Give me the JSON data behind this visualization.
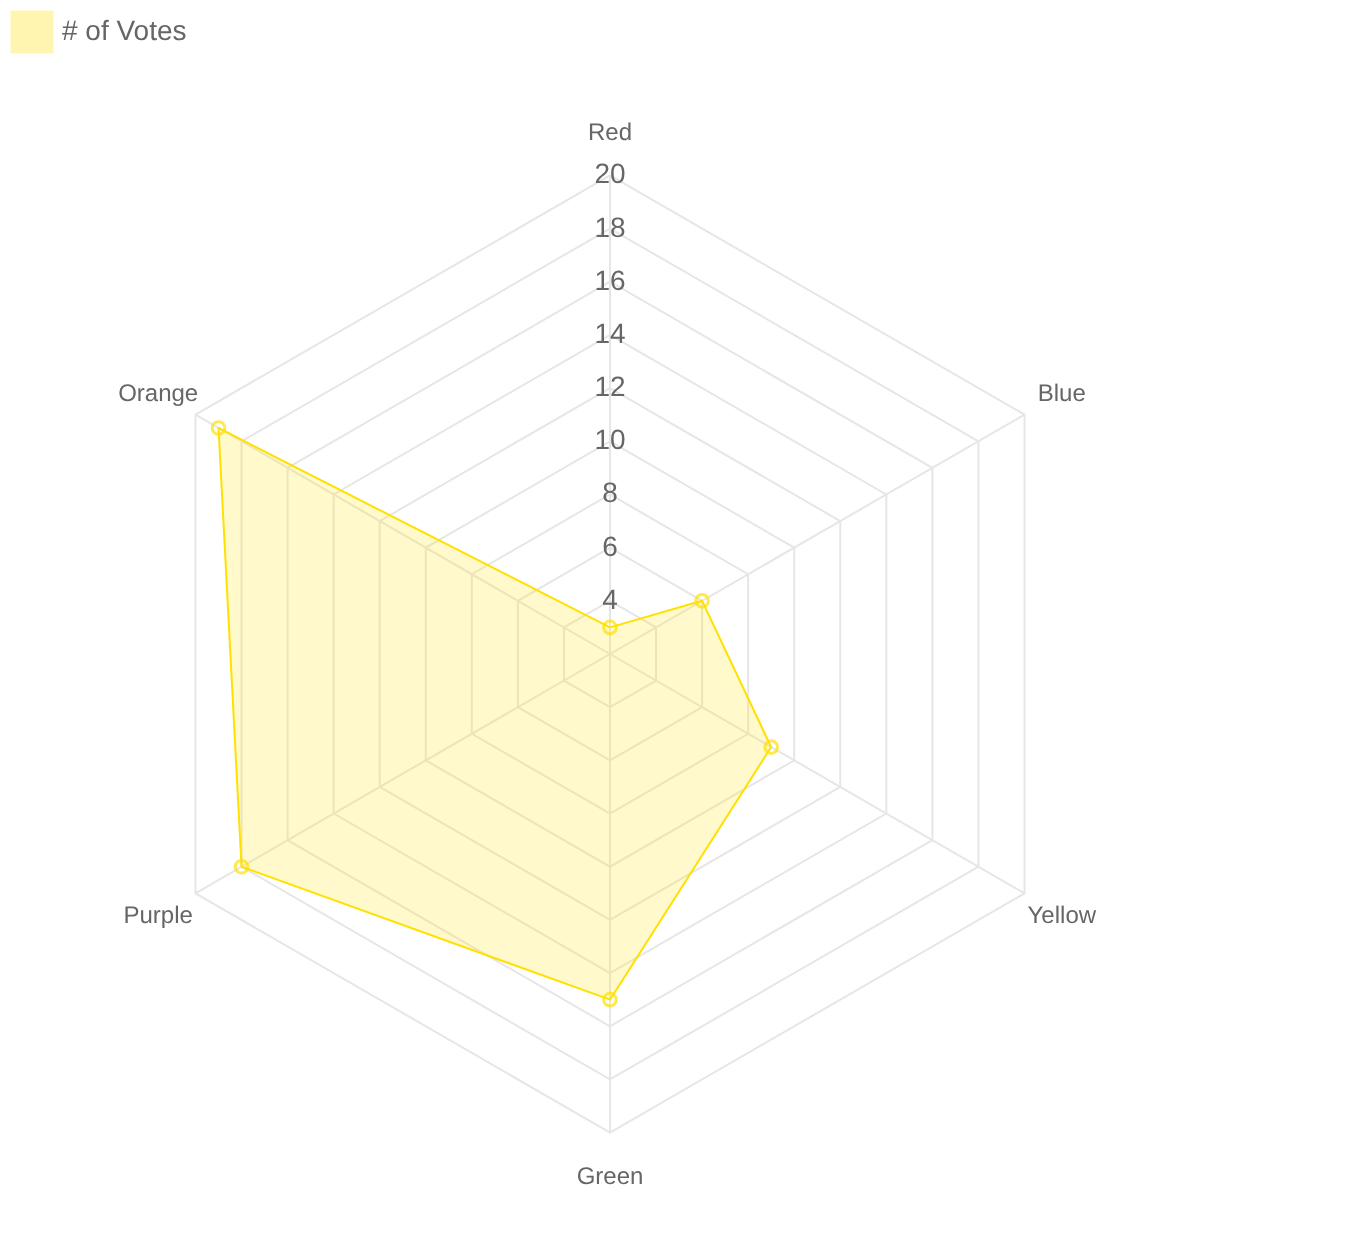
{
  "chart_data": {
    "type": "radar",
    "categories": [
      "Red",
      "Blue",
      "Yellow",
      "Green",
      "Purple",
      "Orange"
    ],
    "series": [
      {
        "name": "# of Votes",
        "color": "#ffe000",
        "values": [
          3,
          6,
          9,
          15,
          18,
          19
        ]
      }
    ],
    "ylim": [
      2,
      20
    ],
    "yticks": [
      4,
      6,
      8,
      10,
      12,
      14,
      16,
      18,
      20
    ],
    "grid": true,
    "legend": "top",
    "marker": "circle"
  }
}
